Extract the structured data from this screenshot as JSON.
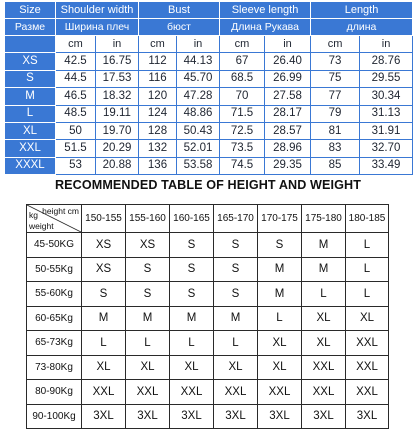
{
  "size_table": {
    "headers_en": [
      "Size",
      "Shoulder width",
      "Bust",
      "Sleeve length",
      "Length"
    ],
    "headers_ru": [
      "Разме",
      "Ширина плеч",
      "бюст",
      "Длина Рукава",
      "длина"
    ],
    "units": [
      "cm",
      "in",
      "cm",
      "in",
      "cm",
      "in",
      "cm",
      "in"
    ],
    "rows": [
      {
        "size": "XS",
        "values": [
          "42.5",
          "16.75",
          "112",
          "44.13",
          "67",
          "26.40",
          "73",
          "28.76"
        ]
      },
      {
        "size": "S",
        "values": [
          "44.5",
          "17.53",
          "116",
          "45.70",
          "68.5",
          "26.99",
          "75",
          "29.55"
        ]
      },
      {
        "size": "M",
        "values": [
          "46.5",
          "18.32",
          "120",
          "47.28",
          "70",
          "27.58",
          "77",
          "30.34"
        ]
      },
      {
        "size": "L",
        "values": [
          "48.5",
          "19.11",
          "124",
          "48.86",
          "71.5",
          "28.17",
          "79",
          "31.13"
        ]
      },
      {
        "size": "XL",
        "values": [
          "50",
          "19.70",
          "128",
          "50.43",
          "72.5",
          "28.57",
          "81",
          "31.91"
        ]
      },
      {
        "size": "XXL",
        "values": [
          "51.5",
          "20.29",
          "132",
          "52.01",
          "73.5",
          "28.96",
          "83",
          "32.70"
        ]
      },
      {
        "size": "XXXL",
        "values": [
          "53",
          "20.88",
          "136",
          "53.58",
          "74.5",
          "29.35",
          "85",
          "33.49"
        ]
      }
    ]
  },
  "recommend": {
    "title": "RECOMMENDED TABLE OF HEIGHT AND WEIGHT",
    "corner": {
      "height_label": "height cm",
      "kg_label": "kg",
      "weight_label": "weight"
    },
    "heights": [
      "150-155",
      "155-160",
      "160-165",
      "165-170",
      "170-175",
      "175-180",
      "180-185"
    ],
    "rows": [
      {
        "weight": "45-50KG",
        "sizes": [
          "XS",
          "XS",
          "S",
          "S",
          "S",
          "M",
          "L"
        ]
      },
      {
        "weight": "50-55Kg",
        "sizes": [
          "XS",
          "S",
          "S",
          "S",
          "M",
          "M",
          "L"
        ]
      },
      {
        "weight": "55-60Kg",
        "sizes": [
          "S",
          "S",
          "S",
          "S",
          "M",
          "L",
          "L"
        ]
      },
      {
        "weight": "60-65Kg",
        "sizes": [
          "M",
          "M",
          "M",
          "M",
          "L",
          "XL",
          "XL"
        ]
      },
      {
        "weight": "65-73Kg",
        "sizes": [
          "L",
          "L",
          "L",
          "L",
          "XL",
          "XL",
          "XXL"
        ]
      },
      {
        "weight": "73-80Kg",
        "sizes": [
          "XL",
          "XL",
          "XL",
          "XL",
          "XL",
          "XXL",
          "XXL"
        ]
      },
      {
        "weight": "80-90Kg",
        "sizes": [
          "XXL",
          "XXL",
          "XXL",
          "XXL",
          "XXL",
          "XXL",
          "XXL"
        ]
      },
      {
        "weight": "90-100Kg",
        "sizes": [
          "3XL",
          "3XL",
          "3XL",
          "3XL",
          "3XL",
          "3XL",
          "3XL"
        ]
      }
    ]
  }
}
